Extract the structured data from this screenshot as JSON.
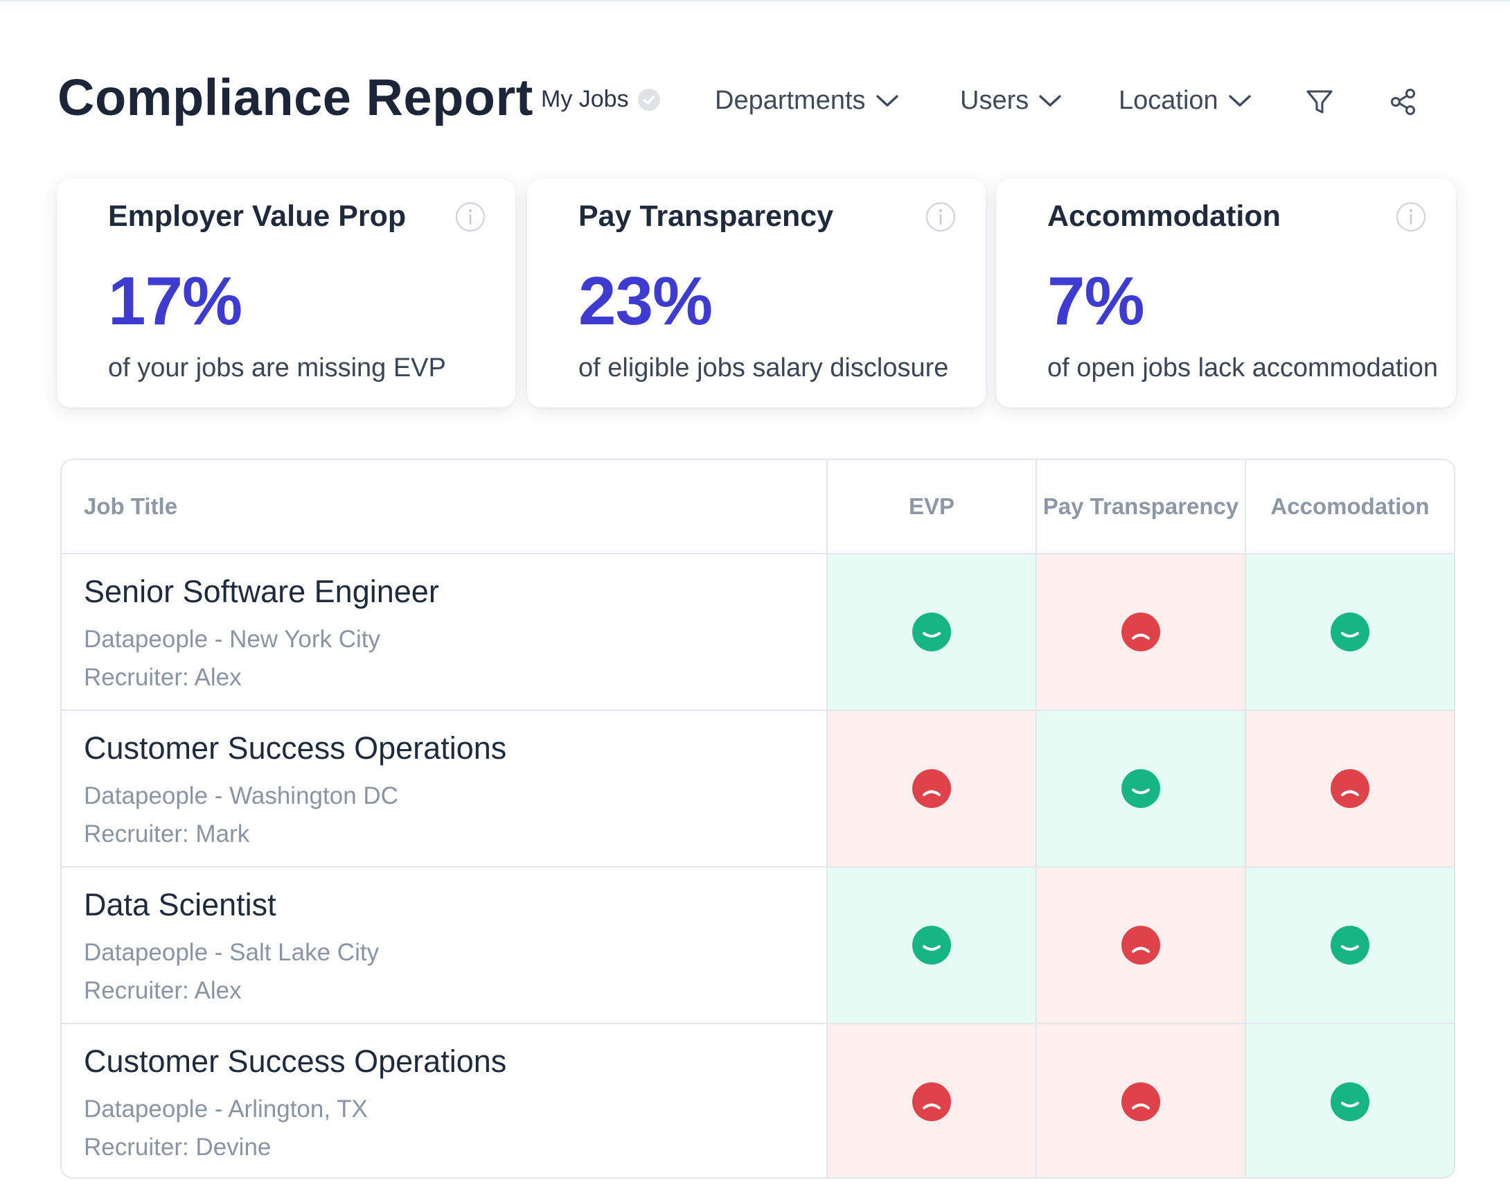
{
  "header": {
    "title": "Compliance Report",
    "my_jobs_label": "My Jobs",
    "filters": {
      "departments": "Departments",
      "users": "Users",
      "location": "Location"
    },
    "icons": [
      "check-circle-icon",
      "chevron-down-icon",
      "filter-icon",
      "share-icon"
    ]
  },
  "cards": [
    {
      "title": "Employer Value Prop",
      "value": "17%",
      "description": "of your jobs are missing EVP"
    },
    {
      "title": "Pay Transparency",
      "value": "23%",
      "description": "of eligible jobs salary disclosure"
    },
    {
      "title": "Accommodation",
      "value": "7%",
      "description": "of open jobs lack accommodation"
    }
  ],
  "table": {
    "columns": {
      "title": "Job Title",
      "evp": "EVP",
      "pay": "Pay Transparency",
      "acc": "Accomodation"
    },
    "rows": [
      {
        "title": "Senior Software Engineer",
        "location": "Datapeople - New York City",
        "recruiter": "Recruiter: Alex",
        "evp": "pass",
        "pay": "fail",
        "acc": "pass"
      },
      {
        "title": "Customer Success Operations",
        "location": "Datapeople - Washington DC",
        "recruiter": "Recruiter: Mark",
        "evp": "fail",
        "pay": "pass",
        "acc": "fail"
      },
      {
        "title": "Data Scientist",
        "location": "Datapeople - Salt Lake City",
        "recruiter": "Recruiter: Alex",
        "evp": "pass",
        "pay": "fail",
        "acc": "pass"
      },
      {
        "title": "Customer Success Operations",
        "location": "Datapeople - Arlington, TX",
        "recruiter": "Recruiter: Devine",
        "evp": "fail",
        "pay": "fail",
        "acc": "pass"
      }
    ]
  },
  "colors": {
    "accent": "#3d3bd0",
    "pass_icon": "#17b584",
    "fail_icon": "#e0424a",
    "pass_bg": "#e4fcf4",
    "fail_bg": "#fcefee"
  }
}
